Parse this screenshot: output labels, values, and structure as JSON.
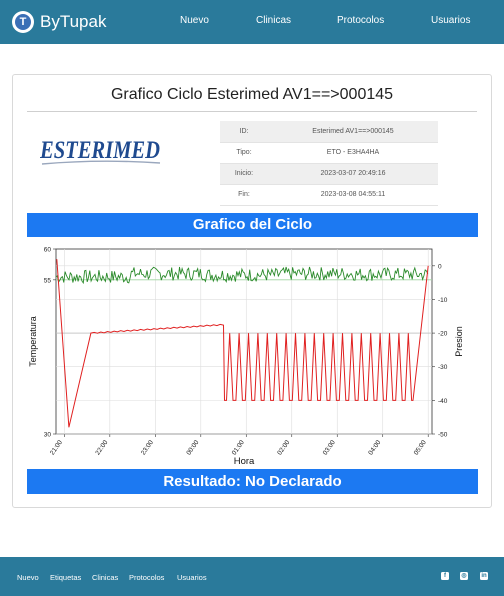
{
  "navbar": {
    "logo_letter": "T",
    "brand": "ByTupak",
    "links": [
      "Nuevo",
      "Clinicas",
      "Protocolos",
      "Usuarios"
    ]
  },
  "card": {
    "title": "Grafico Ciclo Esterimed AV1==>000145",
    "logo_text": "ESTERIMED",
    "info": [
      {
        "label": "ID:",
        "value": "Esterimed AV1==>000145"
      },
      {
        "label": "Tipo:",
        "value": "ETO - E3HA4HA"
      },
      {
        "label": "Inicio:",
        "value": "2023-03-07 20:49:16"
      },
      {
        "label": "Fin:",
        "value": "2023-03-08 04:55:11"
      }
    ],
    "chart_title": "Grafico del Ciclo",
    "result": "Resultado: No Declarado"
  },
  "chart_data": {
    "type": "line",
    "xlabel": "Hora",
    "ylabel_left": "Temperatura",
    "ylabel_right": "Presion",
    "x_ticks": [
      "21:00",
      "22:00",
      "23:00",
      "00:00",
      "01:00",
      "02:00",
      "03:00",
      "04:00",
      "05:00"
    ],
    "x_range": [
      "2023-03-07 20:49",
      "2023-03-08 05:05"
    ],
    "y_left": {
      "ticks": [
        30,
        55,
        60
      ],
      "range": [
        30,
        60
      ]
    },
    "y_right": {
      "ticks": [
        0,
        -10,
        -20,
        -30,
        -40,
        -50
      ],
      "range": [
        -50,
        5
      ]
    },
    "reference_lines": [
      {
        "axis": "left",
        "value": 55
      },
      {
        "axis": "right",
        "value": -20
      }
    ],
    "series": [
      {
        "color": "#2a8a2a",
        "axis": "left",
        "description": "temperature, noisy around 55",
        "x": [
          "2023-03-07 20:49",
          "2023-03-07 22:00",
          "2023-03-08 00:00",
          "2023-03-08 02:00",
          "2023-03-08 04:00",
          "2023-03-08 05:00"
        ],
        "y": [
          55.5,
          56,
          55.8,
          56,
          55.9,
          56.5
        ]
      },
      {
        "color": "#e02020",
        "axis": "right",
        "points": [
          [
            "2023-03-07 20:50",
            2
          ],
          [
            "2023-03-07 21:06",
            -48
          ],
          [
            "2023-03-07 21:35",
            -20
          ],
          [
            "2023-03-08 00:30",
            -17.5
          ],
          [
            "2023-03-08 00:32",
            -40
          ],
          [
            "2023-03-08 04:40",
            -40
          ],
          [
            "2023-03-08 05:00",
            0
          ]
        ],
        "pulses": {
          "count": 20,
          "min": -40,
          "max": -20,
          "from": "2023-03-08 00:32",
          "to": "2023-03-08 04:40"
        }
      }
    ]
  },
  "footer": {
    "links": [
      "Nuevo",
      "Etiquetas",
      "Clinicas",
      "Protocolos",
      "Usuarios"
    ],
    "icons": [
      "facebook-icon",
      "instagram-icon",
      "linkedin-icon"
    ]
  }
}
